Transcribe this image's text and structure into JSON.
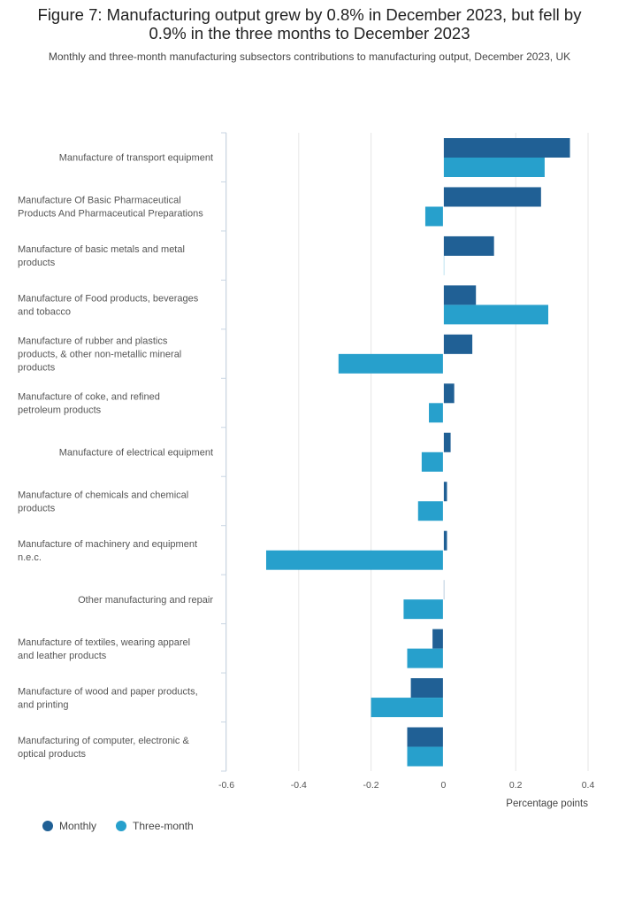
{
  "chart_data": {
    "type": "bar",
    "orientation": "horizontal",
    "title": "Figure 7: Manufacturing output grew by 0.8% in December 2023, but fell by 0.9% in the three months to December 2023",
    "subtitle": "Monthly and three-month manufacturing subsectors contributions to manufacturing output, December 2023, UK",
    "xlabel": "Percentage points",
    "xlim": [
      -0.6,
      0.4
    ],
    "xticks": [
      -0.6,
      -0.4,
      -0.2,
      0,
      0.2,
      0.4
    ],
    "xtick_labels": [
      "-0.6",
      "-0.4",
      "-0.2",
      "0",
      "0.2",
      "0.4"
    ],
    "categories": [
      [
        "Manufacture of transport equipment"
      ],
      [
        "Manufacture Of Basic Pharmaceutical",
        "Products And Pharmaceutical Preparations"
      ],
      [
        "Manufacture of basic metals and metal",
        "products"
      ],
      [
        "Manufacture of Food products, beverages",
        "and tobacco"
      ],
      [
        "Manufacture of rubber and plastics",
        "products, & other non-metallic mineral",
        "products"
      ],
      [
        "Manufacture of coke, and refined",
        "petroleum products"
      ],
      [
        "Manufacture of electrical equipment"
      ],
      [
        "Manufacture of chemicals and chemical",
        "products"
      ],
      [
        "Manufacture of machinery and equipment",
        "n.e.c."
      ],
      [
        "Other manufacturing and repair"
      ],
      [
        "Manufacture of textiles, wearing apparel",
        "and leather products"
      ],
      [
        "Manufacture of wood and paper products,",
        "and printing"
      ],
      [
        "Manufacturing of computer, electronic &",
        "optical products"
      ]
    ],
    "series": [
      {
        "name": "Monthly",
        "color": "#206095",
        "values": [
          0.35,
          0.27,
          0.14,
          0.09,
          0.08,
          0.03,
          0.02,
          0.01,
          0.01,
          0.0,
          -0.03,
          -0.09,
          -0.1
        ]
      },
      {
        "name": "Three-month",
        "color": "#27a0cc",
        "values": [
          0.28,
          -0.05,
          0.0,
          0.29,
          -0.29,
          -0.04,
          -0.06,
          -0.07,
          -0.49,
          -0.11,
          -0.1,
          -0.2,
          -0.1
        ]
      }
    ],
    "legend_position": "bottom-left"
  }
}
